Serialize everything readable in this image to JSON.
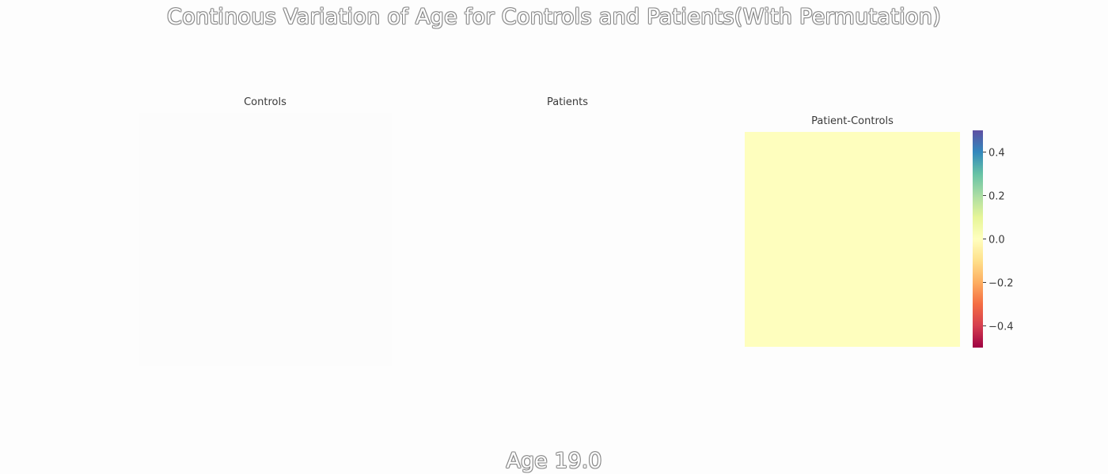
{
  "title": "Continous Variation of Age for Controls and Patients(With Permutation)",
  "footer": "Age 19.0",
  "chart_data": [
    {
      "type": "heatmap",
      "title": "Controls",
      "values": [],
      "grid": false
    },
    {
      "type": "heatmap",
      "title": "Patients",
      "values": [],
      "grid": false
    },
    {
      "type": "heatmap",
      "title": "Patient-Controls",
      "values": [
        [
          0.0
        ]
      ],
      "grid": false,
      "colorbar": {
        "range": [
          -0.5,
          0.5
        ],
        "ticks": [
          0.4,
          0.2,
          0.0,
          -0.2,
          -0.4
        ],
        "tick_labels": [
          "0.4",
          "0.2",
          "0.0",
          "−0.2",
          "−0.4"
        ],
        "colormap": "Spectral",
        "cell_color": "#fefebe"
      }
    }
  ]
}
